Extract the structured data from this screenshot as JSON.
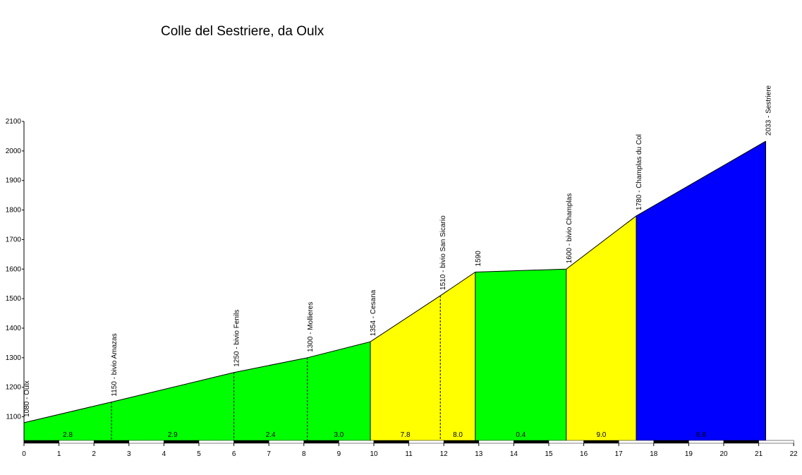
{
  "chart_data": {
    "type": "area",
    "title": "Colle del Sestriere, da Oulx",
    "xlabel": "",
    "ylabel": "",
    "xlim": [
      0,
      22
    ],
    "ylim": [
      1020,
      2100
    ],
    "x_ticks": [
      0,
      1,
      2,
      3,
      4,
      5,
      6,
      7,
      8,
      9,
      10,
      11,
      12,
      13,
      14,
      15,
      16,
      17,
      18,
      19,
      20,
      21,
      22
    ],
    "y_ticks": [
      1100,
      1200,
      1300,
      1400,
      1500,
      1600,
      1700,
      1800,
      1900,
      2000,
      2100
    ],
    "grid": false,
    "points": [
      {
        "x": 0,
        "y": 1080,
        "label": "1080 - Oulx"
      },
      {
        "x": 2.5,
        "y": 1150,
        "label": "1150 - bivio Amazas"
      },
      {
        "x": 6,
        "y": 1250,
        "label": "1250 - bivio Fenils"
      },
      {
        "x": 8.1,
        "y": 1300,
        "label": "1300 - Mollieres"
      },
      {
        "x": 9.9,
        "y": 1354,
        "label": "1354 - Cesana"
      },
      {
        "x": 11.9,
        "y": 1510,
        "label": "1510 - bivio San Sicario"
      },
      {
        "x": 12.9,
        "y": 1590,
        "label": "1590"
      },
      {
        "x": 15.5,
        "y": 1600,
        "label": "1600 - bivio Champlas"
      },
      {
        "x": 17.5,
        "y": 1780,
        "label": "1780 - Champlas du Col"
      },
      {
        "x": 21.2,
        "y": 2033,
        "label": "2033 - Sestriere"
      }
    ],
    "segments": [
      {
        "x0": 0,
        "x1": 2.5,
        "gradient": "2.8",
        "color": "#00ff00"
      },
      {
        "x0": 2.5,
        "x1": 6,
        "gradient": "2.9",
        "color": "#00ff00"
      },
      {
        "x0": 6,
        "x1": 8.1,
        "gradient": "2.4",
        "color": "#00ff00"
      },
      {
        "x0": 8.1,
        "x1": 9.9,
        "gradient": "3.0",
        "color": "#00ff00"
      },
      {
        "x0": 9.9,
        "x1": 11.9,
        "gradient": "7.8",
        "color": "#ffff00"
      },
      {
        "x0": 11.9,
        "x1": 12.9,
        "gradient": "8.0",
        "color": "#ffff00"
      },
      {
        "x0": 12.9,
        "x1": 15.5,
        "gradient": "0.4",
        "color": "#00ff00"
      },
      {
        "x0": 15.5,
        "x1": 17.5,
        "gradient": "9.0",
        "color": "#ffff00"
      },
      {
        "x0": 17.5,
        "x1": 21.2,
        "gradient": "6.8",
        "color": "#0000ff"
      }
    ],
    "colors": {
      "easy": "#00ff00",
      "medium": "#ffff00",
      "hard": "#0000ff"
    }
  }
}
